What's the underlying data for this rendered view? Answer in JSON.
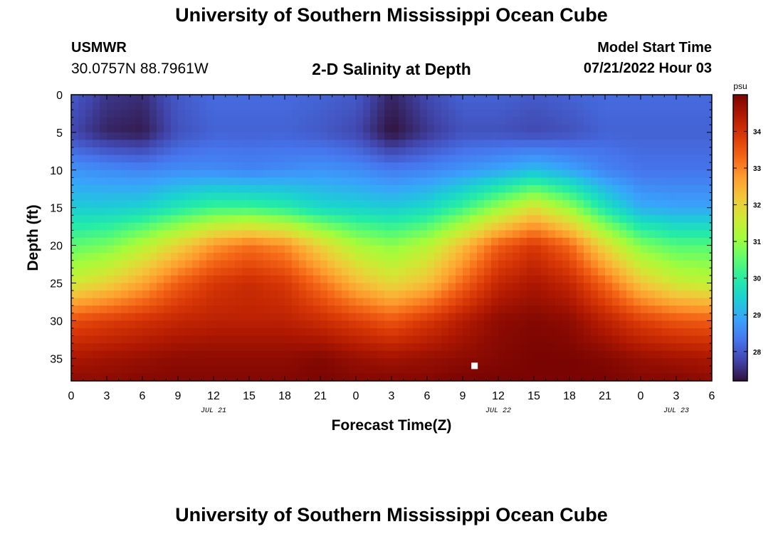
{
  "header": {
    "title": "University of Southern Mississippi Ocean Cube",
    "station_id": "USMWR",
    "coords": "30.0757N  88.7961W",
    "subtitle": "2-D Salinity at Depth",
    "start_label": "Model Start Time",
    "start_value": "07/21/2022 Hour 03"
  },
  "footer": {
    "title": "University of Southern Mississippi Ocean Cube"
  },
  "colors": {
    "colormap": [
      "#30123b",
      "#4145ab",
      "#4675ed",
      "#39a2fc",
      "#1bcfd4",
      "#24eca6",
      "#61fc6c",
      "#a4fc3b",
      "#d1e834",
      "#f3c63a",
      "#fe9b2d",
      "#f36315",
      "#d93806",
      "#b11901",
      "#7a0402"
    ],
    "marker": "#ffffff",
    "frame": "#000000"
  },
  "chart_data": {
    "type": "heatmap",
    "xlabel": "Forecast Time(Z)",
    "ylabel": "Depth (ft)",
    "x_tick_labels": [
      "0",
      "3",
      "6",
      "9",
      "12",
      "15",
      "18",
      "21",
      "0",
      "3",
      "6",
      "9",
      "12",
      "15",
      "18",
      "21",
      "0",
      "3",
      "6"
    ],
    "date_labels": [
      {
        "text": "JUL 21",
        "hour": 12
      },
      {
        "text": "JUL 22",
        "hour": 36
      },
      {
        "text": "JUL 23",
        "hour": 51
      }
    ],
    "xlim_hours": [
      0,
      54
    ],
    "y_ticks": [
      0,
      5,
      10,
      15,
      20,
      25,
      30,
      35
    ],
    "ylim": [
      0,
      38
    ],
    "y_inverted": true,
    "colorbar": {
      "unit": "psu",
      "ticks": [
        28,
        29,
        30,
        31,
        32,
        33,
        34
      ],
      "range": [
        27.2,
        35.0
      ]
    },
    "x_hours": [
      0,
      3,
      6,
      9,
      12,
      15,
      18,
      21,
      24,
      27,
      30,
      33,
      36,
      39,
      42,
      45,
      48,
      51,
      54
    ],
    "depths_ft": [
      0,
      5,
      10,
      15,
      20,
      25,
      30,
      35,
      38
    ],
    "salinity_psu": [
      [
        28.0,
        27.6,
        27.5,
        28.0,
        28.2,
        28.2,
        28.2,
        28.1,
        28.0,
        27.4,
        27.8,
        28.1,
        28.1,
        28.0,
        28.1,
        28.2,
        28.2,
        28.2,
        28.2
      ],
      [
        27.8,
        27.4,
        27.3,
        27.9,
        28.1,
        28.1,
        28.1,
        28.0,
        27.8,
        27.2,
        27.6,
        27.9,
        27.9,
        27.8,
        27.9,
        28.1,
        28.1,
        28.1,
        28.1
      ],
      [
        28.7,
        28.6,
        28.5,
        28.6,
        28.6,
        28.5,
        28.6,
        28.7,
        28.6,
        28.4,
        28.5,
        28.7,
        28.9,
        29.2,
        28.9,
        28.5,
        28.3,
        28.3,
        28.3
      ],
      [
        29.4,
        29.4,
        29.5,
        29.9,
        30.2,
        30.2,
        30.0,
        29.6,
        29.5,
        29.4,
        29.6,
        30.2,
        31.0,
        31.8,
        31.0,
        29.8,
        29.0,
        28.9,
        28.9
      ],
      [
        30.5,
        30.7,
        31.3,
        32.0,
        32.8,
        33.2,
        32.9,
        32.0,
        31.2,
        30.9,
        31.3,
        32.3,
        33.4,
        33.9,
        33.3,
        31.9,
        30.8,
        30.4,
        30.4
      ],
      [
        31.6,
        32.0,
        32.6,
        33.4,
        33.9,
        34.1,
        33.9,
        33.2,
        32.4,
        31.9,
        32.3,
        33.3,
        34.2,
        34.5,
        34.2,
        33.3,
        32.2,
        31.6,
        31.4
      ],
      [
        33.6,
        33.8,
        34.0,
        34.2,
        34.3,
        34.3,
        34.3,
        34.1,
        33.8,
        33.5,
        33.9,
        34.4,
        34.8,
        34.9,
        34.8,
        34.3,
        33.8,
        33.5,
        33.4
      ],
      [
        34.5,
        34.6,
        34.7,
        34.8,
        34.8,
        34.8,
        34.8,
        34.9,
        34.7,
        34.6,
        34.7,
        34.8,
        34.9,
        35.0,
        35.0,
        34.9,
        34.7,
        34.6,
        34.5
      ],
      [
        34.8,
        34.8,
        34.9,
        34.9,
        34.9,
        34.9,
        34.9,
        35.0,
        34.9,
        34.9,
        34.9,
        35.0,
        35.0,
        35.0,
        35.0,
        35.0,
        34.9,
        34.9,
        34.8
      ]
    ],
    "marker_point": {
      "hour": 34,
      "depth_ft": 36
    }
  }
}
